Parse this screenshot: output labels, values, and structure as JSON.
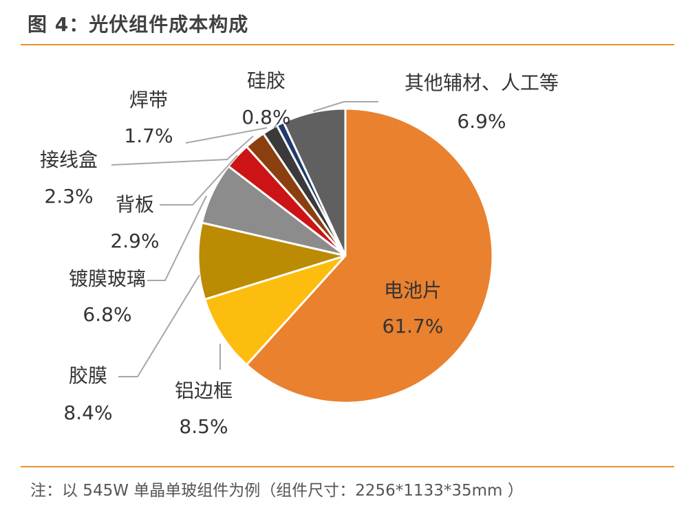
{
  "figure_title": "图 4：光伏组件成本构成",
  "note": "注：以 545W 单晶单玻组件为例（组件尺寸：2256*1133*35mm ）",
  "colors": {
    "accent_rule": "#e8902c"
  },
  "chart_data": {
    "type": "pie",
    "title": "图 4：光伏组件成本构成",
    "unit": "%",
    "slices": [
      {
        "label": "电池片",
        "value": 61.7,
        "display": "61.7%",
        "color": "#e9812f"
      },
      {
        "label": "铝边框",
        "value": 8.5,
        "display": "8.5%",
        "color": "#fdbd0f"
      },
      {
        "label": "胶膜",
        "value": 8.4,
        "display": "8.4%",
        "color": "#bb8b04"
      },
      {
        "label": "镀膜玻璃",
        "value": 6.8,
        "display": "6.8%",
        "color": "#8c8c8c"
      },
      {
        "label": "背板",
        "value": 2.9,
        "display": "2.9%",
        "color": "#cc1417"
      },
      {
        "label": "接线盒",
        "value": 2.3,
        "display": "2.3%",
        "color": "#8b3f0e"
      },
      {
        "label": "焊带",
        "value": 1.7,
        "display": "1.7%",
        "color": "#3a3a3a"
      },
      {
        "label": "硅胶",
        "value": 0.8,
        "display": "0.8%",
        "color": "#1f3b6e"
      },
      {
        "label": "其他辅材、人工等",
        "value": 6.9,
        "display": "6.9%",
        "color": "#606060"
      }
    ]
  }
}
